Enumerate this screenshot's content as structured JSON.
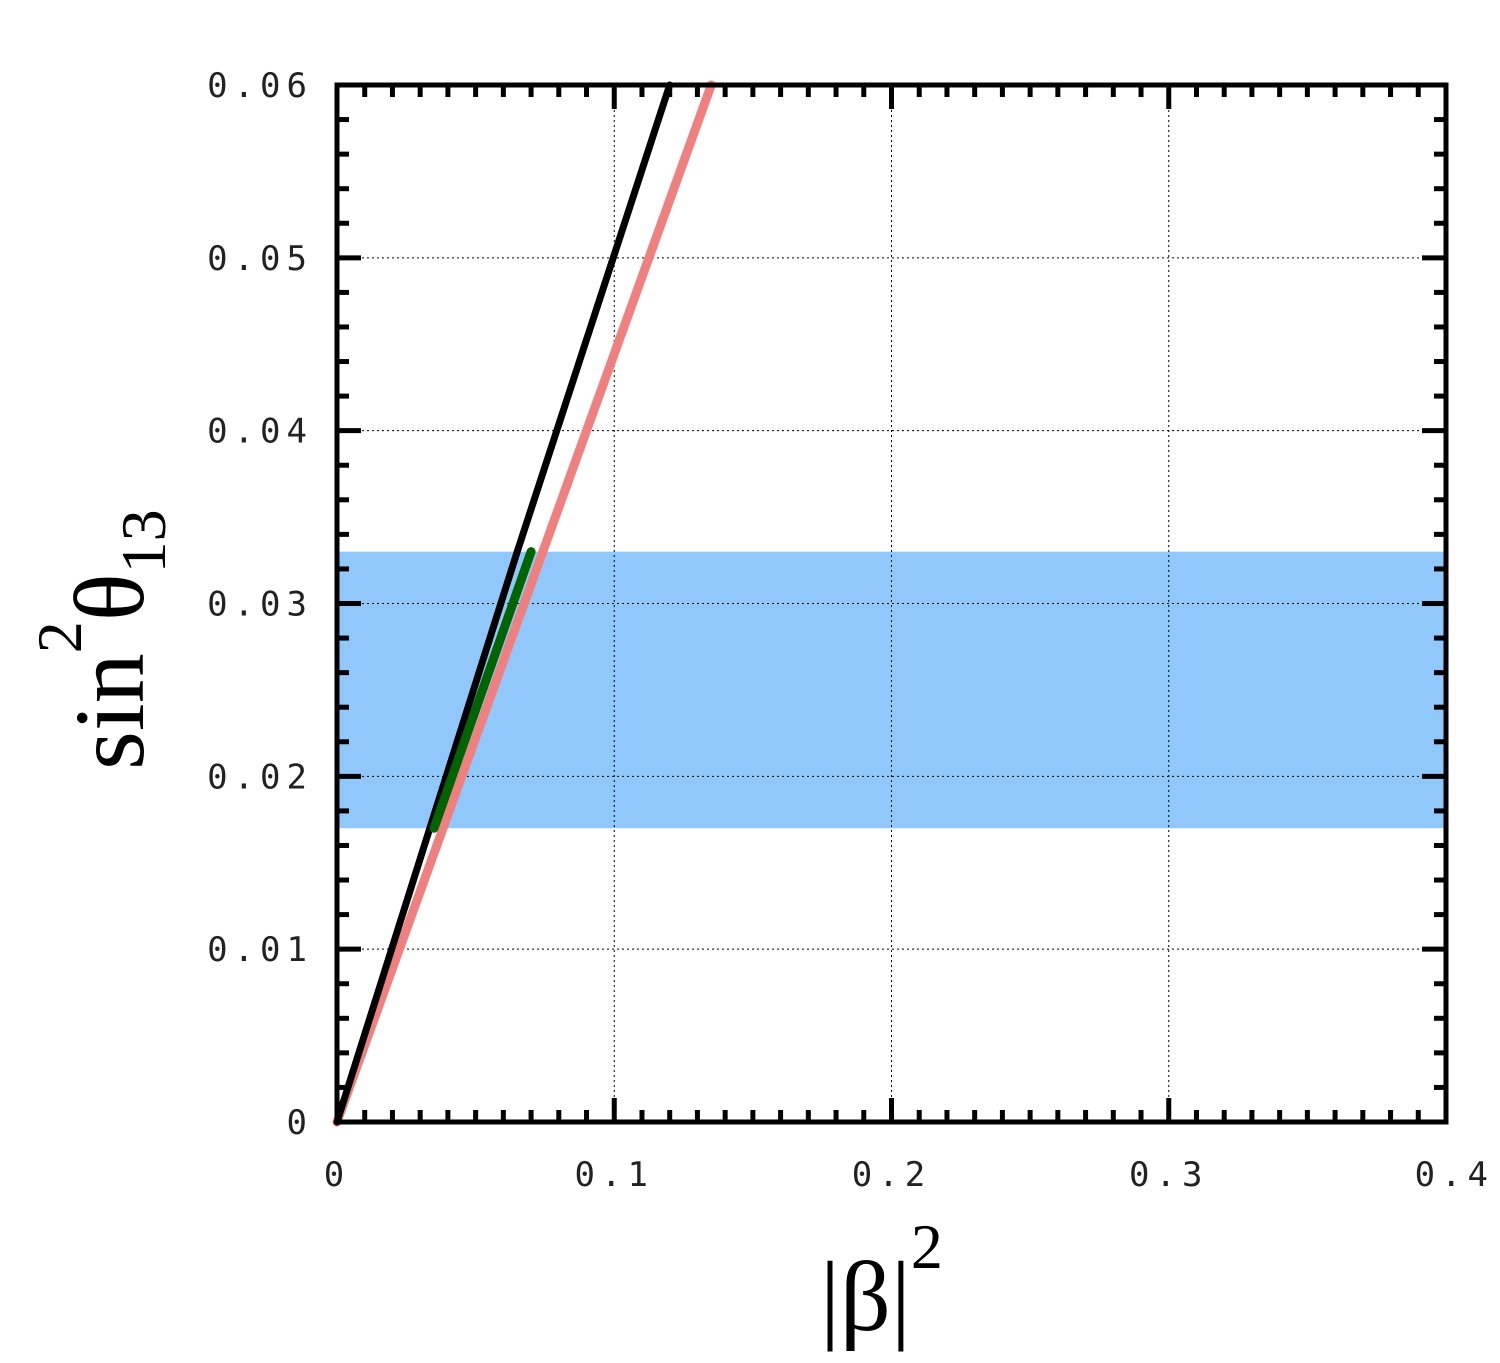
{
  "chart_data": {
    "type": "line",
    "xlabel": {
      "base": "|β|",
      "sup": "2"
    },
    "ylabel": {
      "base": "sin",
      "sup": "2",
      "theta": "θ",
      "sub": "13"
    },
    "xlim": [
      0,
      0.4
    ],
    "ylim": [
      0,
      0.06
    ],
    "x_ticks": [
      {
        "value": 0,
        "label": "0"
      },
      {
        "value": 0.1,
        "label": "0.1"
      },
      {
        "value": 0.2,
        "label": "0.2"
      },
      {
        "value": 0.3,
        "label": "0.3"
      },
      {
        "value": 0.4,
        "label": "0.4"
      }
    ],
    "y_ticks": [
      {
        "value": 0,
        "label": "0"
      },
      {
        "value": 0.01,
        "label": "0.01"
      },
      {
        "value": 0.02,
        "label": "0.02"
      },
      {
        "value": 0.03,
        "label": "0.03"
      },
      {
        "value": 0.04,
        "label": "0.04"
      },
      {
        "value": 0.05,
        "label": "0.05"
      },
      {
        "value": 0.06,
        "label": "0.06"
      }
    ],
    "x_minor_step": 0.01,
    "y_minor_step": 0.002,
    "grid": true,
    "band": {
      "y_min": 0.017,
      "y_max": 0.033,
      "color": "#90c8fb"
    },
    "series": [
      {
        "color": "#f08080",
        "width": 9,
        "points": [
          [
            0,
            0
          ],
          [
            0.135,
            0.06
          ]
        ]
      },
      {
        "color": "#000000",
        "width": 7,
        "points": [
          [
            0,
            0
          ],
          [
            0.065,
            0.033
          ],
          [
            0.12,
            0.06
          ]
        ]
      },
      {
        "color": "#006400",
        "width": 9,
        "points": [
          [
            0.035,
            0.017
          ],
          [
            0.07,
            0.033
          ]
        ]
      }
    ]
  }
}
